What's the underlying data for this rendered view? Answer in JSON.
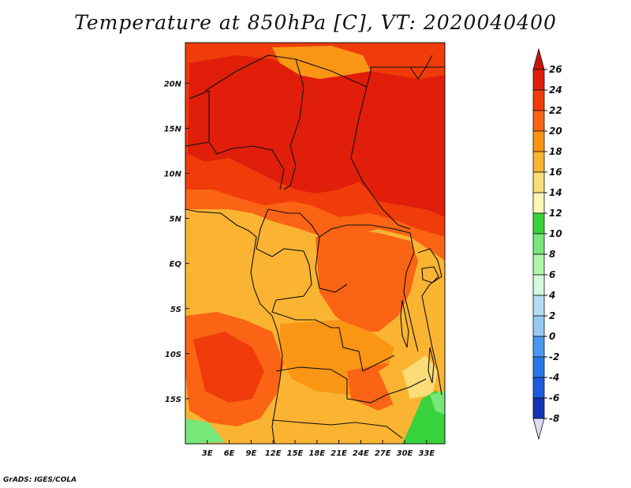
{
  "title": "Temperature at 850hPa [C], VT: 2020040400",
  "credit": "GrADS: IGES/COLA",
  "map": {
    "lon_range": [
      0,
      35.5
    ],
    "lat_range": [
      -20,
      24.5
    ],
    "xticks": [
      {
        "value": 3,
        "label": "3E"
      },
      {
        "value": 6,
        "label": "6E"
      },
      {
        "value": 9,
        "label": "9E"
      },
      {
        "value": 12,
        "label": "12E"
      },
      {
        "value": 15,
        "label": "15E"
      },
      {
        "value": 18,
        "label": "18E"
      },
      {
        "value": 21,
        "label": "21E"
      },
      {
        "value": 24,
        "label": "24E"
      },
      {
        "value": 27,
        "label": "27E"
      },
      {
        "value": 30,
        "label": "30E"
      },
      {
        "value": 33,
        "label": "33E"
      }
    ],
    "yticks": [
      {
        "value": 20,
        "label": "20N"
      },
      {
        "value": 15,
        "label": "15N"
      },
      {
        "value": 10,
        "label": "10N"
      },
      {
        "value": 5,
        "label": "5N"
      },
      {
        "value": 0,
        "label": "EQ"
      },
      {
        "value": -5,
        "label": "5S"
      },
      {
        "value": -10,
        "label": "10S"
      },
      {
        "value": -15,
        "label": "15S"
      }
    ]
  },
  "colorbar": {
    "levels": [
      {
        "label": "26",
        "color": "#e01e0a"
      },
      {
        "label": "24",
        "color": "#f03c0a"
      },
      {
        "label": "22",
        "color": "#fa6414"
      },
      {
        "label": "20",
        "color": "#fa9614"
      },
      {
        "label": "18",
        "color": "#fab432"
      },
      {
        "label": "16",
        "color": "#fadc78"
      },
      {
        "label": "14",
        "color": "#fff5b4"
      },
      {
        "label": "12",
        "color": "#37d23c"
      },
      {
        "label": "10",
        "color": "#78e678"
      },
      {
        "label": "8",
        "color": "#aff5aa"
      },
      {
        "label": "6",
        "color": "#d2fadc"
      },
      {
        "label": "4",
        "color": "#b4dcf5"
      },
      {
        "label": "2",
        "color": "#96c8f5"
      },
      {
        "label": "0",
        "color": "#4b96f0"
      },
      {
        "label": "-2",
        "color": "#2878e6"
      },
      {
        "label": "-4",
        "color": "#1e5adc"
      },
      {
        "label": "-6",
        "color": "#1432b4"
      },
      {
        "label": "-8",
        "color": "#0a1e78"
      }
    ],
    "top_color": "#c8140a",
    "bottom_color": "#dcdcf5"
  }
}
